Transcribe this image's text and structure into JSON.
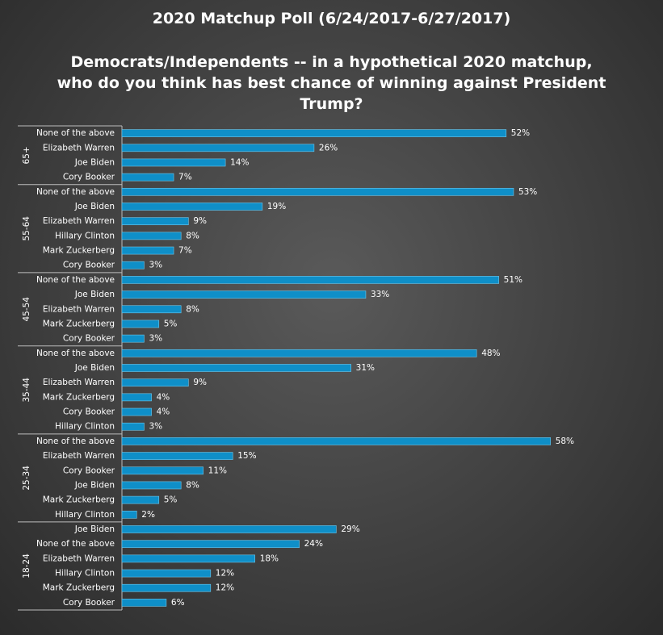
{
  "chart_data": {
    "type": "bar",
    "orientation": "horizontal",
    "title": "2020 Matchup  Poll (6/24/2017-6/27/2017)",
    "subtitle_lines": [
      "Democrats/Independents  -- in a hypothetical  2020 matchup,",
      "who  do  you  think has best  chance  of  winning  against  President",
      "Trump?"
    ],
    "value_suffix": "%",
    "xlim": [
      0,
      60
    ],
    "bar_color": "#0f8fc8",
    "groups": [
      {
        "name": "65+",
        "items": [
          {
            "label": "None of the above",
            "value": 52
          },
          {
            "label": "Elizabeth Warren",
            "value": 26
          },
          {
            "label": "Joe Biden",
            "value": 14
          },
          {
            "label": "Cory Booker",
            "value": 7
          }
        ]
      },
      {
        "name": "55-64",
        "items": [
          {
            "label": "None of the above",
            "value": 53
          },
          {
            "label": "Joe Biden",
            "value": 19
          },
          {
            "label": "Elizabeth Warren",
            "value": 9
          },
          {
            "label": "Hillary Clinton",
            "value": 8
          },
          {
            "label": "Mark Zuckerberg",
            "value": 7
          },
          {
            "label": "Cory Booker",
            "value": 3
          }
        ]
      },
      {
        "name": "45-54",
        "items": [
          {
            "label": "None of the above",
            "value": 51
          },
          {
            "label": "Joe Biden",
            "value": 33
          },
          {
            "label": "Elizabeth Warren",
            "value": 8
          },
          {
            "label": "Mark Zuckerberg",
            "value": 5
          },
          {
            "label": "Cory Booker",
            "value": 3
          }
        ]
      },
      {
        "name": "35-44",
        "items": [
          {
            "label": "None of the above",
            "value": 48
          },
          {
            "label": "Joe Biden",
            "value": 31
          },
          {
            "label": "Elizabeth Warren",
            "value": 9
          },
          {
            "label": "Mark Zuckerberg",
            "value": 4
          },
          {
            "label": "Cory Booker",
            "value": 4
          },
          {
            "label": "Hillary Clinton",
            "value": 3
          }
        ]
      },
      {
        "name": "25-34",
        "items": [
          {
            "label": "None of the above",
            "value": 58
          },
          {
            "label": "Elizabeth Warren",
            "value": 15
          },
          {
            "label": "Cory Booker",
            "value": 11
          },
          {
            "label": "Joe Biden",
            "value": 8
          },
          {
            "label": "Mark Zuckerberg",
            "value": 5
          },
          {
            "label": "Hillary Clinton",
            "value": 2
          }
        ]
      },
      {
        "name": "18-24",
        "items": [
          {
            "label": "Joe Biden",
            "value": 29
          },
          {
            "label": "None of the above",
            "value": 24
          },
          {
            "label": "Elizabeth Warren",
            "value": 18
          },
          {
            "label": "Hillary Clinton",
            "value": 12
          },
          {
            "label": "Mark Zuckerberg",
            "value": 12
          },
          {
            "label": "Cory Booker",
            "value": 6
          }
        ]
      }
    ]
  }
}
